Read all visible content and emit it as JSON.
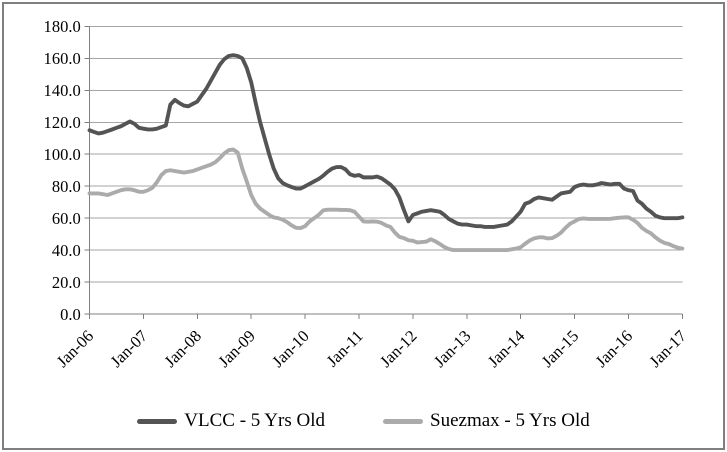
{
  "window": {
    "background": "#ffffff",
    "border_color": "#7f7f7f"
  },
  "axes_style": {
    "axis_color": "#808080",
    "gridline_color": "#a6a6a6",
    "tick_label_color": "#000000",
    "tick_font_size": 17,
    "legend_font_size": 19
  },
  "chart_data": {
    "type": "line",
    "title": "",
    "xlabel": "",
    "ylabel": "",
    "x_frequency": "monthly",
    "x_start": "Jan-06",
    "x_end": "Jan-17",
    "x_tick_labels": [
      "Jan-06",
      "Jan-07",
      "Jan-08",
      "Jan-09",
      "Jan-10",
      "Jan-11",
      "Jan-12",
      "Jan-13",
      "Jan-14",
      "Jan-15",
      "Jan-16",
      "Jan-17"
    ],
    "y_tick_labels": [
      "0.0",
      "20.0",
      "40.0",
      "60.0",
      "80.0",
      "100.0",
      "120.0",
      "140.0",
      "160.0",
      "180.0"
    ],
    "ylim": [
      0,
      180
    ],
    "y_tick_step": 20,
    "grid": "horizontal",
    "legend_position": "bottom",
    "series": [
      {
        "name": "VLCC - 5 Yrs Old",
        "color": "#545454",
        "values": [
          115,
          114,
          113,
          113.5,
          114.5,
          115.5,
          116.5,
          117.5,
          119,
          120.5,
          119,
          116.5,
          116,
          115.5,
          115.5,
          116,
          117,
          118,
          131,
          134,
          132,
          130.5,
          130,
          131.5,
          133,
          137,
          141,
          146,
          151,
          156,
          159.5,
          161.5,
          162,
          161.5,
          160,
          154,
          145,
          132,
          120,
          110,
          100,
          91,
          85,
          82,
          80.5,
          79.5,
          78.5,
          78.5,
          80,
          81.5,
          83,
          84.5,
          86.5,
          89,
          91,
          92,
          92,
          90.5,
          87.5,
          86.5,
          87,
          85.5,
          85.5,
          85.5,
          86,
          85,
          83,
          81,
          78,
          73,
          65,
          58,
          62,
          63,
          64,
          64.5,
          65,
          64.5,
          64,
          62,
          59.5,
          58,
          56.5,
          56,
          56,
          55.5,
          55,
          55,
          54.5,
          54.5,
          54.5,
          55,
          55.5,
          56,
          58,
          61,
          64,
          69,
          70,
          72,
          73,
          72.5,
          72,
          71.5,
          73.5,
          75.5,
          76,
          76.5,
          79.5,
          80.5,
          81,
          80.5,
          80.5,
          81,
          82,
          81.5,
          81,
          81.5,
          81.5,
          78.5,
          77.5,
          77,
          71,
          69,
          66,
          64,
          61.5,
          60.5,
          60,
          60,
          60,
          60,
          60.5
        ]
      },
      {
        "name": "Suezmax - 5 Yrs Old",
        "color": "#ababab",
        "values": [
          75.5,
          75.5,
          75.5,
          75,
          74.5,
          75.5,
          76.5,
          77.5,
          78,
          78,
          77.5,
          76.5,
          76.5,
          77.5,
          79,
          82.5,
          87,
          89.5,
          90,
          89.5,
          89,
          88.5,
          89,
          89.5,
          90.5,
          91.5,
          92.5,
          93.5,
          95,
          97.5,
          100.5,
          102.5,
          103,
          101,
          91,
          83,
          74.5,
          69,
          66,
          64,
          62,
          60.5,
          60,
          59,
          57.5,
          55.5,
          54,
          53.8,
          55,
          58,
          60,
          62,
          64.8,
          65.3,
          65.3,
          65.3,
          65.2,
          65.2,
          65,
          64,
          61,
          58,
          57.8,
          58,
          57.8,
          57,
          55.5,
          54.5,
          51,
          48.3,
          47.5,
          46.2,
          45.8,
          44.8,
          45,
          45.3,
          46.8,
          45.5,
          43.8,
          42,
          40.7,
          40,
          40,
          40,
          40,
          40,
          40,
          40,
          40,
          40,
          40,
          40,
          40,
          40,
          40.5,
          41,
          41.8,
          44,
          46,
          47.3,
          48,
          48,
          47.3,
          47.5,
          49,
          51,
          54,
          56.5,
          58,
          59.5,
          59.8,
          59.5,
          59.5,
          59.5,
          59.5,
          59.5,
          59.6,
          60,
          60.3,
          60.5,
          60.5,
          59,
          57,
          54,
          52,
          50.5,
          48,
          46,
          44.5,
          43.8,
          42.5,
          41.5,
          41
        ]
      }
    ]
  }
}
